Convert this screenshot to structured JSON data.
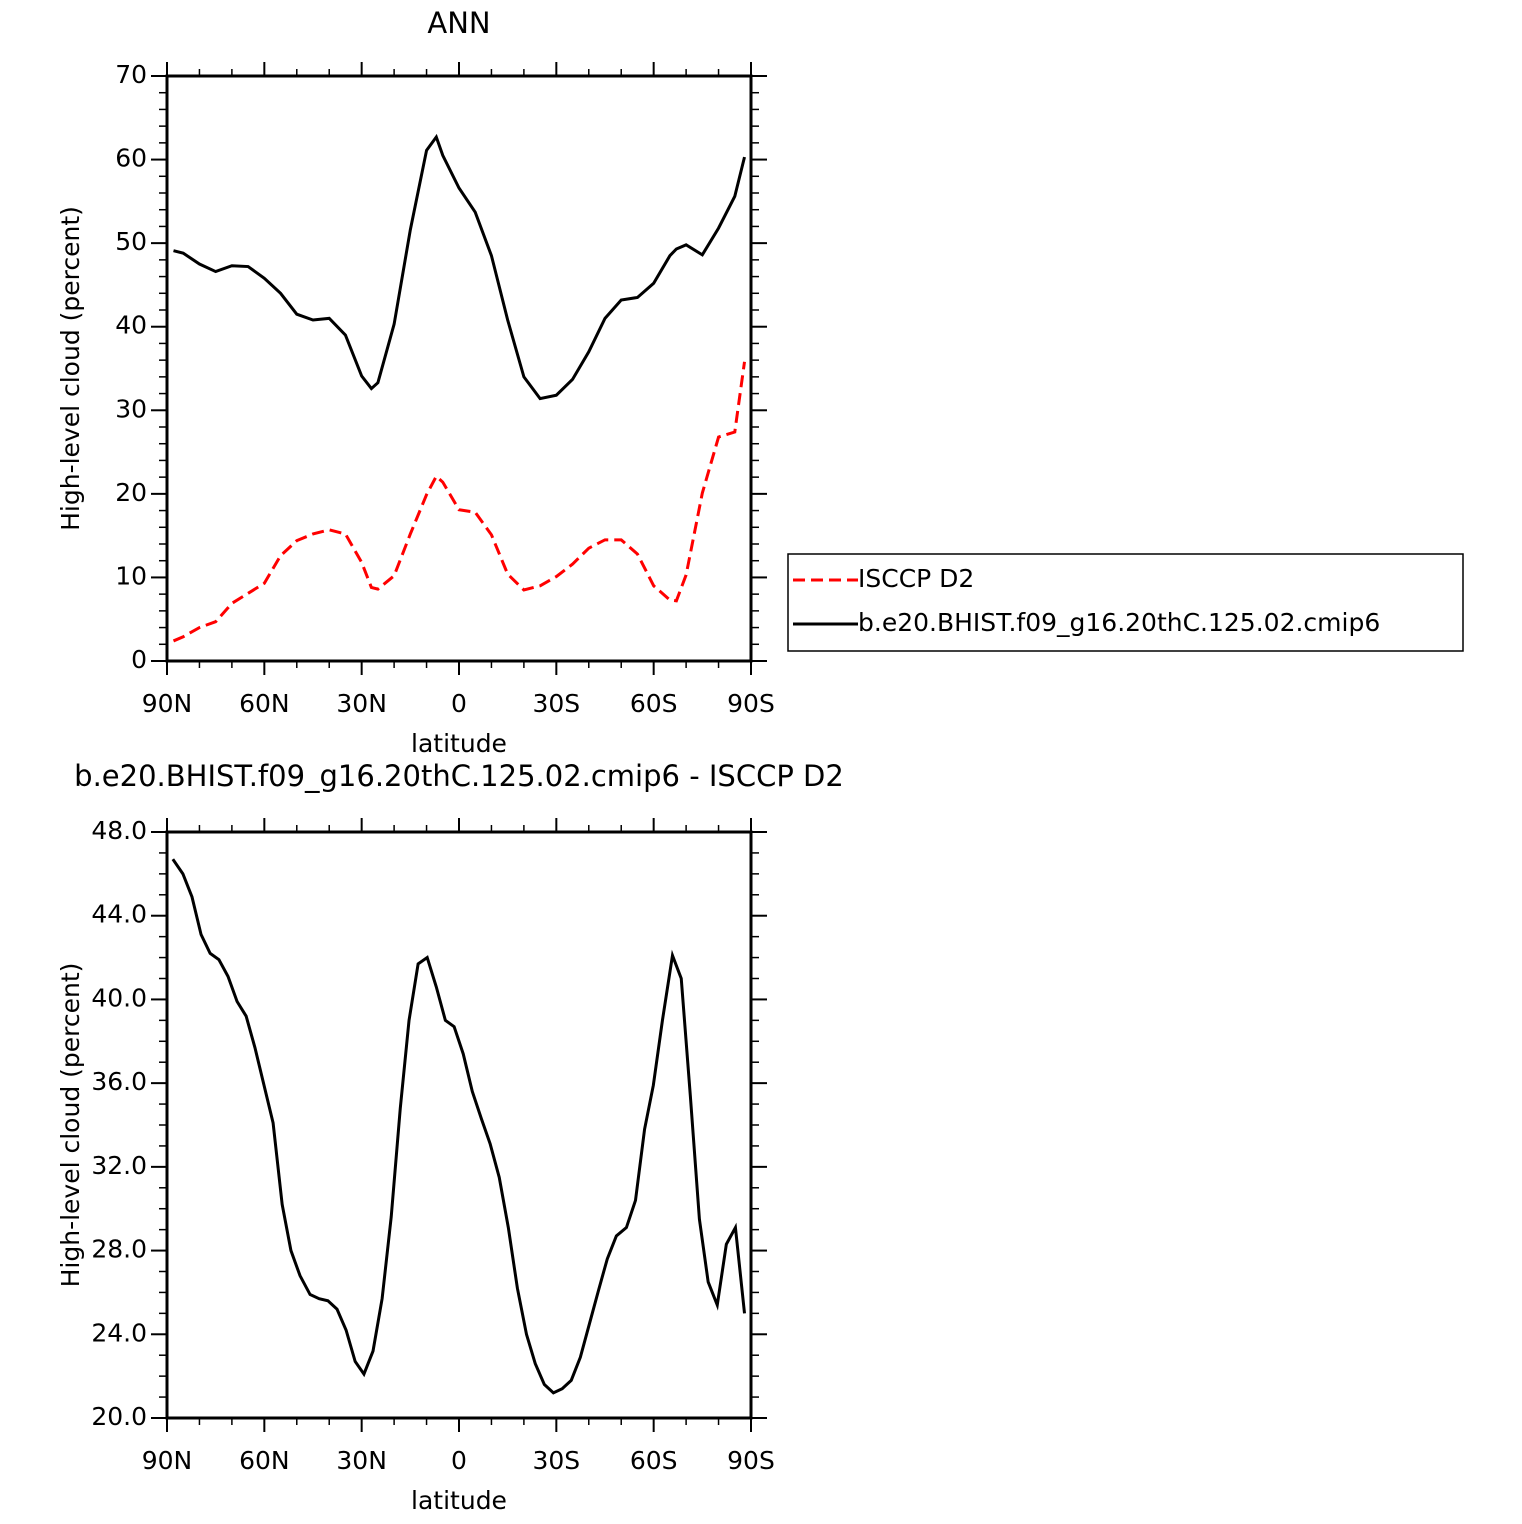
{
  "chart_data": [
    {
      "type": "line",
      "title": "ANN",
      "xlabel": "latitude",
      "ylabel": "High-level cloud (percent)",
      "x": [
        88,
        85,
        80,
        75,
        70,
        65,
        60,
        55,
        50,
        45,
        40,
        35,
        30,
        27,
        25,
        20,
        15,
        10,
        7,
        5,
        0,
        -5,
        -10,
        -15,
        -20,
        -25,
        -30,
        -35,
        -40,
        -45,
        -50,
        -55,
        -60,
        -65,
        -67,
        -70,
        -75,
        -80,
        -85,
        -88
      ],
      "series": [
        {
          "name": "ISCCP D2",
          "color": "#ff0000",
          "dash": "dashed",
          "values": [
            2.4,
            2.9,
            4.0,
            4.7,
            6.9,
            8.1,
            9.3,
            12.6,
            14.4,
            15.2,
            15.7,
            15.2,
            11.8,
            8.8,
            8.6,
            10.2,
            15.2,
            19.9,
            22.1,
            21.4,
            18.1,
            17.8,
            15.1,
            10.4,
            8.5,
            9.0,
            10.1,
            11.6,
            13.5,
            14.5,
            14.5,
            12.8,
            9.0,
            7.3,
            7.2,
            10.3,
            20.1,
            26.8,
            27.4,
            35.8
          ]
        },
        {
          "name": "b.e20.BHIST.f09_g16.20thC.125.02.cmip6",
          "color": "#000000",
          "dash": "solid",
          "values": [
            49.1,
            48.8,
            47.5,
            46.6,
            47.3,
            47.2,
            45.8,
            44.0,
            41.5,
            40.8,
            41.0,
            39.0,
            34.1,
            32.6,
            33.3,
            40.3,
            51.6,
            61.1,
            62.7,
            60.5,
            56.6,
            53.7,
            48.5,
            40.8,
            34.0,
            31.4,
            31.8,
            33.7,
            37.0,
            41.0,
            43.2,
            43.5,
            45.2,
            48.5,
            49.3,
            49.8,
            48.6,
            51.8,
            55.6,
            60.3
          ]
        }
      ],
      "xlim": [
        90,
        -90
      ],
      "xticks": [
        {
          "value": 90,
          "label": "90N"
        },
        {
          "value": 60,
          "label": "60N"
        },
        {
          "value": 30,
          "label": "30N"
        },
        0,
        {
          "value": -30,
          "label": "30S"
        },
        {
          "value": -60,
          "label": "60S"
        },
        {
          "value": -90,
          "label": "90S"
        }
      ],
      "ylim": [
        0,
        70
      ],
      "yticks": [
        0,
        10,
        20,
        30,
        40,
        50,
        60,
        70
      ],
      "legend": "right"
    },
    {
      "type": "line",
      "title": "b.e20.BHIST.f09_g16.20thC.125.02.cmip6 - ISCCP D2",
      "xlabel": "latitude",
      "ylabel": "High-level cloud (percent)",
      "x": [
        88.2,
        85.1,
        82.3,
        79.5,
        76.7,
        74.0,
        71.2,
        68.4,
        65.6,
        62.9,
        60.1,
        57.3,
        54.5,
        51.8,
        49.0,
        45.9,
        43.1,
        40.4,
        37.6,
        34.8,
        32.0,
        29.3,
        26.5,
        23.7,
        20.9,
        18.1,
        15.4,
        12.6,
        9.8,
        7.0,
        4.2,
        1.5,
        -1.3,
        -4.1,
        -6.9,
        -9.6,
        -12.4,
        -15.2,
        -18.0,
        -20.8,
        -23.5,
        -26.3,
        -29.1,
        -31.8,
        -34.6,
        -37.4,
        -40.2,
        -43.0,
        -45.7,
        -48.5,
        -51.6,
        -54.4,
        -57.2,
        -59.9,
        -62.7,
        -65.8,
        -68.5,
        -71.3,
        -74.1,
        -76.8,
        -79.6,
        -82.4,
        -85.2,
        -88.0
      ],
      "series": [
        {
          "name": "b.e20.BHIST.f09_g16.20thC.125.02.cmip6 - ISCCP D2",
          "color": "#000000",
          "dash": "solid",
          "values": [
            46.7,
            46.0,
            44.9,
            43.1,
            42.2,
            41.9,
            41.1,
            39.9,
            39.2,
            37.7,
            35.9,
            34.1,
            30.2,
            28.0,
            26.8,
            25.9,
            25.7,
            25.6,
            25.2,
            24.2,
            22.7,
            22.1,
            23.2,
            25.7,
            29.6,
            34.8,
            39.0,
            41.7,
            42.0,
            40.6,
            39.0,
            38.7,
            37.4,
            35.6,
            34.3,
            33.1,
            31.5,
            29.1,
            26.2,
            24.0,
            22.6,
            21.6,
            21.2,
            21.4,
            21.8,
            22.9,
            24.5,
            26.1,
            27.6,
            28.7,
            29.1,
            30.4,
            33.8,
            35.9,
            39.0,
            42.1,
            41.0,
            35.4,
            29.5,
            26.5,
            25.4,
            28.3,
            29.1,
            25.0
          ]
        }
      ],
      "xlim": [
        90,
        -90
      ],
      "xticks": [
        {
          "value": 90,
          "label": "90N"
        },
        {
          "value": 60,
          "label": "60N"
        },
        {
          "value": 30,
          "label": "30N"
        },
        0,
        {
          "value": -30,
          "label": "30S"
        },
        {
          "value": -60,
          "label": "60S"
        },
        {
          "value": -90,
          "label": "90S"
        }
      ],
      "ylim": [
        20,
        48
      ],
      "yticks": [
        {
          "value": 20,
          "label": "20.0"
        },
        {
          "value": 24,
          "label": "24.0"
        },
        {
          "value": 28,
          "label": "28.0"
        },
        {
          "value": 32,
          "label": "32.0"
        },
        {
          "value": 36,
          "label": "36.0"
        },
        {
          "value": 40,
          "label": "40.0"
        },
        {
          "value": 44,
          "label": "44.0"
        },
        {
          "value": 48,
          "label": "48.0"
        }
      ]
    }
  ]
}
